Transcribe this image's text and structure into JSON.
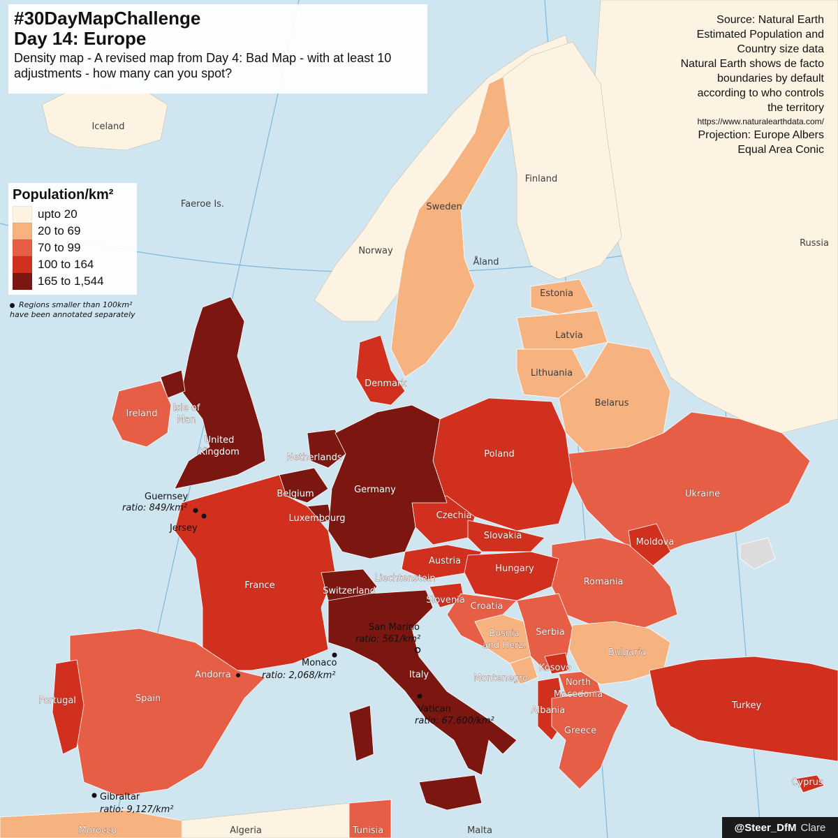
{
  "title": {
    "line1": "#30DayMapChallenge",
    "line2": "Day 14: Europe",
    "description": "Density map - A revised map from Day 4: Bad Map - with at least 10 adjustments - how many can you spot?"
  },
  "source": {
    "lines": [
      "Source: Natural Earth",
      "Estimated Population and",
      "Country size data",
      "Natural Earth shows de facto",
      "boundaries by default",
      "according to who controls",
      "the territory"
    ],
    "url": "https://www.naturalearthdata.com/",
    "projection_lines": [
      "Projection: Europe Albers",
      "Equal Area Conic"
    ]
  },
  "legend": {
    "title": "Population/km²",
    "items": [
      {
        "label": "upto 20",
        "color": "#fdf3e3"
      },
      {
        "label": "20 to 69",
        "color": "#f6b27f"
      },
      {
        "label": "70 to 99",
        "color": "#e55e45"
      },
      {
        "label": "100 to 164",
        "color": "#d1301e"
      },
      {
        "label": "165 to 1,544",
        "color": "#7b1611"
      }
    ],
    "note": "Regions smaller than 100km² have been annotated separately"
  },
  "colors": {
    "sea": "#cfe6f1",
    "graticule": "#7fb6d9",
    "no_data": "#dcdcdc",
    "outside": "#fdf3e3"
  },
  "countries": [
    {
      "name": "Iceland",
      "cls": "light",
      "bin": 0
    },
    {
      "name": "Faeroe Is.",
      "cls": "light",
      "bin": 0
    },
    {
      "name": "Norway",
      "cls": "light",
      "bin": 0
    },
    {
      "name": "Sweden",
      "cls": "light",
      "bin": 1
    },
    {
      "name": "Finland",
      "cls": "light",
      "bin": 0
    },
    {
      "name": "Åland",
      "cls": "light",
      "bin": 1
    },
    {
      "name": "Russia",
      "cls": "light",
      "bin": 0
    },
    {
      "name": "Estonia",
      "cls": "light",
      "bin": 1
    },
    {
      "name": "Latvia",
      "cls": "light",
      "bin": 1
    },
    {
      "name": "Lithuania",
      "cls": "light",
      "bin": 1
    },
    {
      "name": "Belarus",
      "cls": "light",
      "bin": 1
    },
    {
      "name": "Denmark",
      "cls": "",
      "bin": 3
    },
    {
      "name": "Ireland",
      "cls": "",
      "bin": 2
    },
    {
      "name": "Isle of Man",
      "cls": "",
      "bin": 4
    },
    {
      "name": "United Kingdom",
      "cls": "",
      "bin": 4
    },
    {
      "name": "Netherlands",
      "cls": "",
      "bin": 4
    },
    {
      "name": "Belgium",
      "cls": "",
      "bin": 4
    },
    {
      "name": "Luxembourg",
      "cls": "",
      "bin": 4
    },
    {
      "name": "Germany",
      "cls": "",
      "bin": 4
    },
    {
      "name": "Poland",
      "cls": "",
      "bin": 3
    },
    {
      "name": "Ukraine",
      "cls": "",
      "bin": 2
    },
    {
      "name": "Czechia",
      "cls": "",
      "bin": 3
    },
    {
      "name": "Slovakia",
      "cls": "",
      "bin": 3
    },
    {
      "name": "Austria",
      "cls": "",
      "bin": 3
    },
    {
      "name": "Hungary",
      "cls": "",
      "bin": 3
    },
    {
      "name": "Moldova",
      "cls": "",
      "bin": 3
    },
    {
      "name": "Romania",
      "cls": "",
      "bin": 2
    },
    {
      "name": "Liechtenstein",
      "cls": "",
      "bin": 3
    },
    {
      "name": "Switzerland",
      "cls": "",
      "bin": 4
    },
    {
      "name": "France",
      "cls": "",
      "bin": 3
    },
    {
      "name": "Slovenia",
      "cls": "",
      "bin": 3
    },
    {
      "name": "Croatia",
      "cls": "",
      "bin": 2
    },
    {
      "name": "Bosnia and Herz.",
      "cls": "",
      "bin": 1
    },
    {
      "name": "Serbia",
      "cls": "",
      "bin": 2
    },
    {
      "name": "Bulgaria",
      "cls": "",
      "bin": 1
    },
    {
      "name": "Montenegro",
      "cls": "",
      "bin": 1
    },
    {
      "name": "Kosovo",
      "cls": "",
      "bin": 3
    },
    {
      "name": "North Macedonia",
      "cls": "",
      "bin": 2
    },
    {
      "name": "Albania",
      "cls": "",
      "bin": 3
    },
    {
      "name": "Greece",
      "cls": "",
      "bin": 2
    },
    {
      "name": "Turkey",
      "cls": "",
      "bin": 3
    },
    {
      "name": "Cyprus",
      "cls": "",
      "bin": 3
    },
    {
      "name": "Italy",
      "cls": "",
      "bin": 4
    },
    {
      "name": "Spain",
      "cls": "",
      "bin": 2
    },
    {
      "name": "Portugal",
      "cls": "",
      "bin": 3
    },
    {
      "name": "Andorra",
      "cls": "",
      "bin": 3
    },
    {
      "name": "Morocco",
      "cls": "",
      "bin": 2
    },
    {
      "name": "Algeria",
      "cls": "light",
      "bin": 0
    },
    {
      "name": "Tunisia",
      "cls": "",
      "bin": 2
    },
    {
      "name": "Malta",
      "cls": "light",
      "bin": 4
    }
  ],
  "small_regions": [
    {
      "name": "Guernsey",
      "ratio": "ratio: 849/km²"
    },
    {
      "name": "Jersey",
      "ratio": ""
    },
    {
      "name": "Monaco",
      "ratio": "ratio: 2,068/km²"
    },
    {
      "name": "San Marino",
      "ratio": "ratio: 561/km²"
    },
    {
      "name": "Vatican",
      "ratio": "ratio: 67,600/km²"
    },
    {
      "name": "Gibraltar",
      "ratio": "ratio: 9,127/km²"
    }
  ],
  "credit": {
    "handle": "@Steer_DfM",
    "name": "Clare"
  }
}
